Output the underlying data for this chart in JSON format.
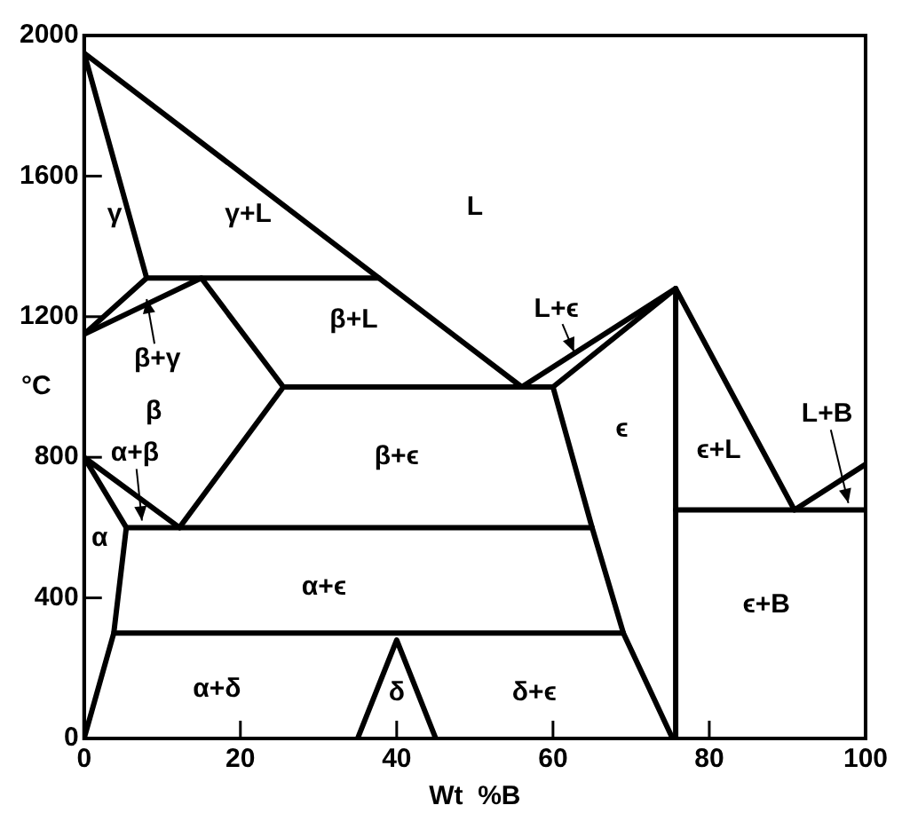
{
  "chart_data": {
    "type": "line",
    "xlabel": "Wt  %B",
    "ylabel": "°C",
    "xlim": [
      0,
      100
    ],
    "ylim": [
      0,
      2000
    ],
    "xticks": [
      0,
      20,
      40,
      60,
      80,
      100
    ],
    "yticks": [
      0,
      400,
      800,
      1200,
      1600,
      2000
    ],
    "grid": false,
    "legend": false,
    "marker": "none",
    "line_style": "solid",
    "series": [
      {
        "color": "#000000",
        "x": [
          0,
          56,
          75.7,
          90.9,
          100
        ],
        "values": [
          1950,
          1000,
          1280,
          650,
          780
        ]
      },
      {
        "color": "#000000",
        "x": [
          0,
          8
        ],
        "values": [
          1950,
          1310
        ]
      },
      {
        "color": "#000000",
        "x": [
          8,
          37.7
        ],
        "values": [
          1310,
          1310
        ]
      },
      {
        "color": "#000000",
        "x": [
          0,
          8
        ],
        "values": [
          1150,
          1310
        ]
      },
      {
        "color": "#000000",
        "x": [
          0,
          15,
          25.5,
          12.2
        ],
        "values": [
          1150,
          1310,
          1000,
          600
        ]
      },
      {
        "color": "#000000",
        "x": [
          25.5,
          60
        ],
        "values": [
          1000,
          1000
        ]
      },
      {
        "color": "#000000",
        "x": [
          60,
          75.7
        ],
        "values": [
          1000,
          1280
        ]
      },
      {
        "color": "#000000",
        "x": [
          60,
          65,
          69,
          75.3
        ],
        "values": [
          1000,
          600,
          300,
          0
        ]
      },
      {
        "color": "#000000",
        "x": [
          75.7,
          75.7
        ],
        "values": [
          0,
          1280
        ]
      },
      {
        "color": "#000000",
        "x": [
          75.7,
          100
        ],
        "values": [
          650,
          650
        ]
      },
      {
        "color": "#000000",
        "x": [
          12.2,
          0,
          5.4,
          3.8,
          0
        ],
        "values": [
          600,
          800,
          600,
          300,
          0
        ]
      },
      {
        "color": "#000000",
        "x": [
          5.4,
          65
        ],
        "values": [
          600,
          600
        ]
      },
      {
        "color": "#000000",
        "x": [
          3.8,
          69
        ],
        "values": [
          300,
          300
        ]
      },
      {
        "color": "#000000",
        "x": [
          35,
          40,
          45
        ],
        "values": [
          0,
          280,
          0
        ]
      }
    ],
    "annotations": [
      "γ",
      "γ+L",
      "L",
      {
        "text": "L+ϵ",
        "x": 62.7,
        "y": 1100
      },
      "β+L",
      {
        "text": "β+γ",
        "x": 8,
        "y": 1250
      },
      "β",
      {
        "text": "α+β",
        "x": 7.4,
        "y": 620
      },
      "β+ϵ",
      "ϵ",
      "ϵ+L",
      {
        "text": "L+B",
        "x": 97.8,
        "y": 670
      },
      "α",
      "α+ϵ",
      "α+δ",
      "δ",
      "δ+ϵ",
      "ϵ+B"
    ]
  }
}
